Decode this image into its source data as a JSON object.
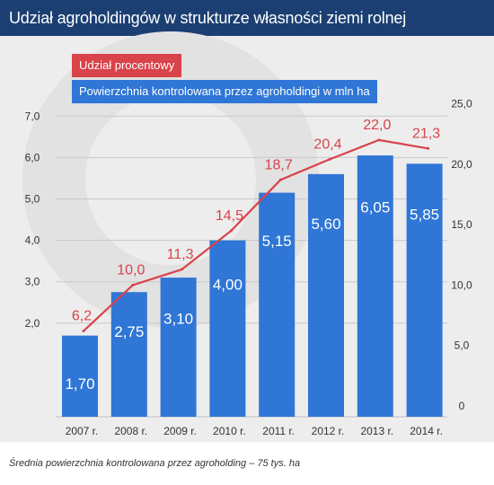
{
  "title": "Udział agroholdingów w strukturze własności ziemi rolnej",
  "footnote": "Średnia powierzchnia kontrolowana przez agroholding – 75 tys. ha",
  "colors": {
    "title_bg": "#1b3f72",
    "plot_bg": "#ededed",
    "bar": "#2f76d6",
    "line": "#d9434a"
  },
  "chart_data": {
    "type": "bar",
    "categories": [
      "2007 r.",
      "2008 r.",
      "2009 r.",
      "2010 r.",
      "2011 r.",
      "2012 r.",
      "2013 r.",
      "2014 r."
    ],
    "series": [
      {
        "name": "Powierzchnia kontrolowana przez agroholdingi w mln ha",
        "type": "bar",
        "axis": "left",
        "values": [
          1.7,
          2.75,
          3.1,
          4.0,
          5.15,
          5.6,
          6.05,
          5.85
        ],
        "labels": [
          "1,70",
          "2,75",
          "3,10",
          "4,00",
          "5,15",
          "5,60",
          "6,05",
          "5,85"
        ]
      },
      {
        "name": "Udział procentowy",
        "type": "line",
        "axis": "right",
        "values": [
          6.2,
          10.0,
          11.3,
          14.5,
          18.7,
          20.4,
          22.0,
          21.3
        ],
        "labels": [
          "6,2",
          "10,0",
          "11,3",
          "14,5",
          "18,7",
          "20,4",
          "22,0",
          "21,3"
        ]
      }
    ],
    "left_axis": {
      "ylim": [
        0,
        7
      ],
      "ticks": [
        7,
        6,
        5,
        4,
        3,
        2
      ],
      "tick_labels": [
        "7,0",
        "6,0",
        "5,0",
        "4,0",
        "3,0",
        "2,0"
      ]
    },
    "right_axis": {
      "ylim": [
        0,
        25
      ],
      "ticks": [
        25,
        20,
        15,
        10,
        5,
        0
      ],
      "tick_labels": [
        "25,0",
        "20,0",
        "15,0",
        "10,0",
        "5,0",
        "0"
      ]
    },
    "grid": true,
    "legend": [
      "Udział procentowy",
      "Powierzchnia kontrolowana przez agroholdingi w mln ha"
    ],
    "legend_position": "top-left"
  }
}
